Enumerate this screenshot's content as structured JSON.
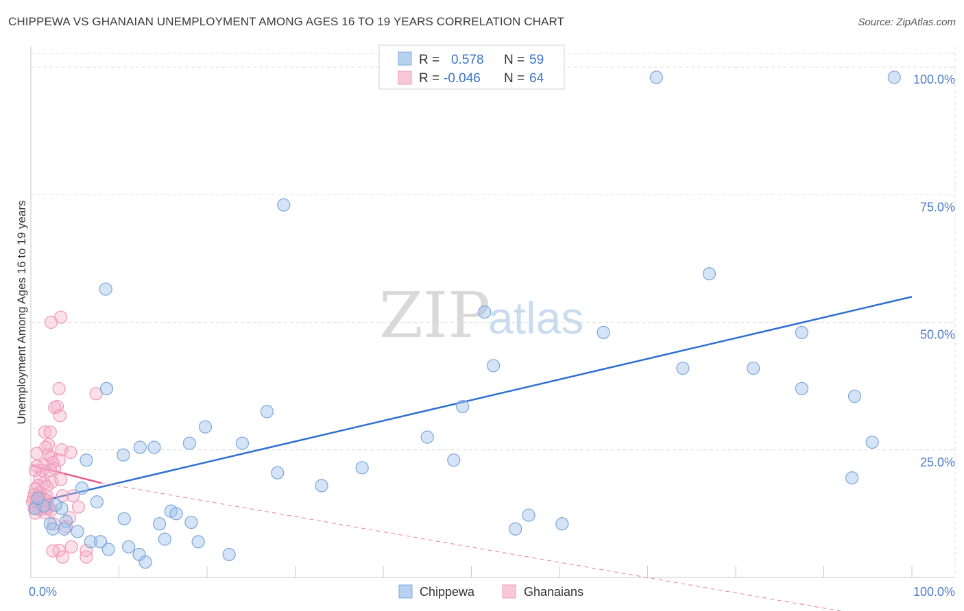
{
  "title": "CHIPPEWA VS GHANAIAN UNEMPLOYMENT AMONG AGES 16 TO 19 YEARS CORRELATION CHART",
  "source": "Source: ZipAtlas.com",
  "watermark": {
    "zip": "ZIP",
    "atlas": "atlas"
  },
  "chart_data": {
    "type": "scatter",
    "xlabel": "",
    "ylabel": "Unemployment Among Ages 16 to 19 years",
    "xlim": [
      0,
      100
    ],
    "ylim": [
      0,
      100
    ],
    "x_tick_labels": [
      "0.0%",
      "100.0%"
    ],
    "y_ticks": [
      25,
      50,
      75,
      100
    ],
    "y_tick_labels": [
      "25.0%",
      "50.0%",
      "75.0%",
      "100.0%"
    ],
    "grid": true,
    "legend_position": "top-center",
    "series": [
      {
        "name": "Chippewa",
        "color": "#7fb0e6",
        "line_color": "#2f6fcf",
        "R": "0.578",
        "N": "59",
        "trend": {
          "x": [
            0,
            100
          ],
          "y": [
            14.5,
            55.0
          ]
        },
        "points": [
          [
            71.0,
            98.0
          ],
          [
            98.0,
            98.0
          ],
          [
            28.7,
            73.0
          ],
          [
            8.5,
            56.5
          ],
          [
            77.0,
            59.5
          ],
          [
            51.5,
            52.0
          ],
          [
            65.0,
            48.0
          ],
          [
            87.5,
            48.0
          ],
          [
            52.5,
            41.5
          ],
          [
            74.0,
            41.0
          ],
          [
            82.0,
            41.0
          ],
          [
            8.6,
            37.0
          ],
          [
            87.5,
            37.0
          ],
          [
            93.5,
            35.5
          ],
          [
            26.8,
            32.5
          ],
          [
            49.0,
            33.5
          ],
          [
            19.8,
            29.5
          ],
          [
            45.0,
            27.5
          ],
          [
            95.5,
            26.5
          ],
          [
            10.5,
            24.0
          ],
          [
            18.0,
            26.3
          ],
          [
            24.0,
            26.3
          ],
          [
            12.4,
            25.5
          ],
          [
            14.0,
            25.5
          ],
          [
            6.3,
            23.0
          ],
          [
            48.0,
            23.0
          ],
          [
            37.6,
            21.5
          ],
          [
            28.0,
            20.5
          ],
          [
            93.2,
            19.5
          ],
          [
            33.0,
            18.0
          ],
          [
            5.8,
            17.5
          ],
          [
            7.5,
            14.8
          ],
          [
            3.5,
            13.5
          ],
          [
            0.5,
            13.5
          ],
          [
            1.5,
            14.0
          ],
          [
            2.8,
            14.2
          ],
          [
            0.8,
            15.5
          ],
          [
            15.9,
            13.0
          ],
          [
            56.5,
            12.2
          ],
          [
            10.6,
            11.5
          ],
          [
            4.0,
            11.0
          ],
          [
            16.5,
            12.5
          ],
          [
            2.2,
            10.5
          ],
          [
            14.6,
            10.5
          ],
          [
            18.2,
            10.8
          ],
          [
            60.3,
            10.5
          ],
          [
            3.8,
            9.5
          ],
          [
            2.5,
            9.5
          ],
          [
            5.3,
            9.0
          ],
          [
            55.0,
            9.5
          ],
          [
            6.8,
            7.0
          ],
          [
            7.9,
            7.0
          ],
          [
            15.2,
            7.5
          ],
          [
            11.1,
            6.0
          ],
          [
            19.0,
            7.0
          ],
          [
            12.3,
            4.5
          ],
          [
            8.8,
            5.5
          ],
          [
            13.0,
            3.0
          ],
          [
            22.5,
            4.5
          ]
        ]
      },
      {
        "name": "Ghanaians",
        "color": "#f4a8c0",
        "line_color": "#e85a8a",
        "R": "-0.046",
        "N": "64",
        "trend": {
          "x": [
            0,
            8
          ],
          "y": [
            22.0,
            18.5
          ]
        },
        "trend_ext": {
          "x": [
            8,
            100
          ],
          "y": [
            18.5,
            -9.0
          ]
        },
        "points": [
          [
            3.4,
            51.0
          ],
          [
            2.3,
            50.0
          ],
          [
            3.2,
            37.0
          ],
          [
            7.4,
            36.0
          ],
          [
            3.0,
            33.5
          ],
          [
            2.7,
            33.3
          ],
          [
            3.3,
            31.7
          ],
          [
            1.6,
            28.5
          ],
          [
            2.2,
            28.5
          ],
          [
            2.0,
            26.0
          ],
          [
            1.7,
            25.5
          ],
          [
            3.5,
            25.0
          ],
          [
            4.5,
            24.5
          ],
          [
            2.0,
            24.0
          ],
          [
            0.7,
            24.3
          ],
          [
            2.3,
            23.5
          ],
          [
            3.2,
            23.0
          ],
          [
            2.5,
            22.5
          ],
          [
            1.5,
            22.0
          ],
          [
            0.7,
            21.8
          ],
          [
            2.7,
            21.3
          ],
          [
            0.5,
            21.0
          ],
          [
            1.3,
            21.0
          ],
          [
            2.2,
            21.0
          ],
          [
            1.0,
            19.5
          ],
          [
            2.4,
            18.7
          ],
          [
            1.5,
            18.5
          ],
          [
            3.4,
            19.2
          ],
          [
            0.8,
            18.0
          ],
          [
            1.8,
            17.8
          ],
          [
            0.5,
            17.3
          ],
          [
            1.0,
            16.6
          ],
          [
            1.8,
            16.0
          ],
          [
            0.4,
            16.3
          ],
          [
            0.9,
            15.8
          ],
          [
            3.6,
            16.0
          ],
          [
            4.8,
            16.0
          ],
          [
            0.3,
            15.5
          ],
          [
            1.2,
            15.0
          ],
          [
            0.6,
            14.8
          ],
          [
            1.9,
            15.0
          ],
          [
            1.5,
            15.3
          ],
          [
            0.2,
            14.8
          ],
          [
            0.9,
            14.5
          ],
          [
            1.8,
            14.3
          ],
          [
            0.6,
            14.0
          ],
          [
            1.3,
            13.8
          ],
          [
            2.0,
            13.7
          ],
          [
            0.4,
            13.5
          ],
          [
            1.0,
            13.3
          ],
          [
            1.8,
            13.5
          ],
          [
            2.3,
            13.2
          ],
          [
            5.4,
            13.8
          ],
          [
            1.6,
            12.7
          ],
          [
            0.5,
            12.6
          ],
          [
            4.4,
            11.7
          ],
          [
            2.6,
            10.5
          ],
          [
            4.0,
            10.0
          ],
          [
            4.6,
            6.0
          ],
          [
            3.2,
            5.3
          ],
          [
            2.5,
            5.2
          ],
          [
            6.3,
            5.3
          ],
          [
            3.6,
            4.0
          ],
          [
            6.3,
            4.0
          ]
        ]
      }
    ]
  },
  "legend": {
    "r_label": "R =",
    "n_label": "N ="
  }
}
